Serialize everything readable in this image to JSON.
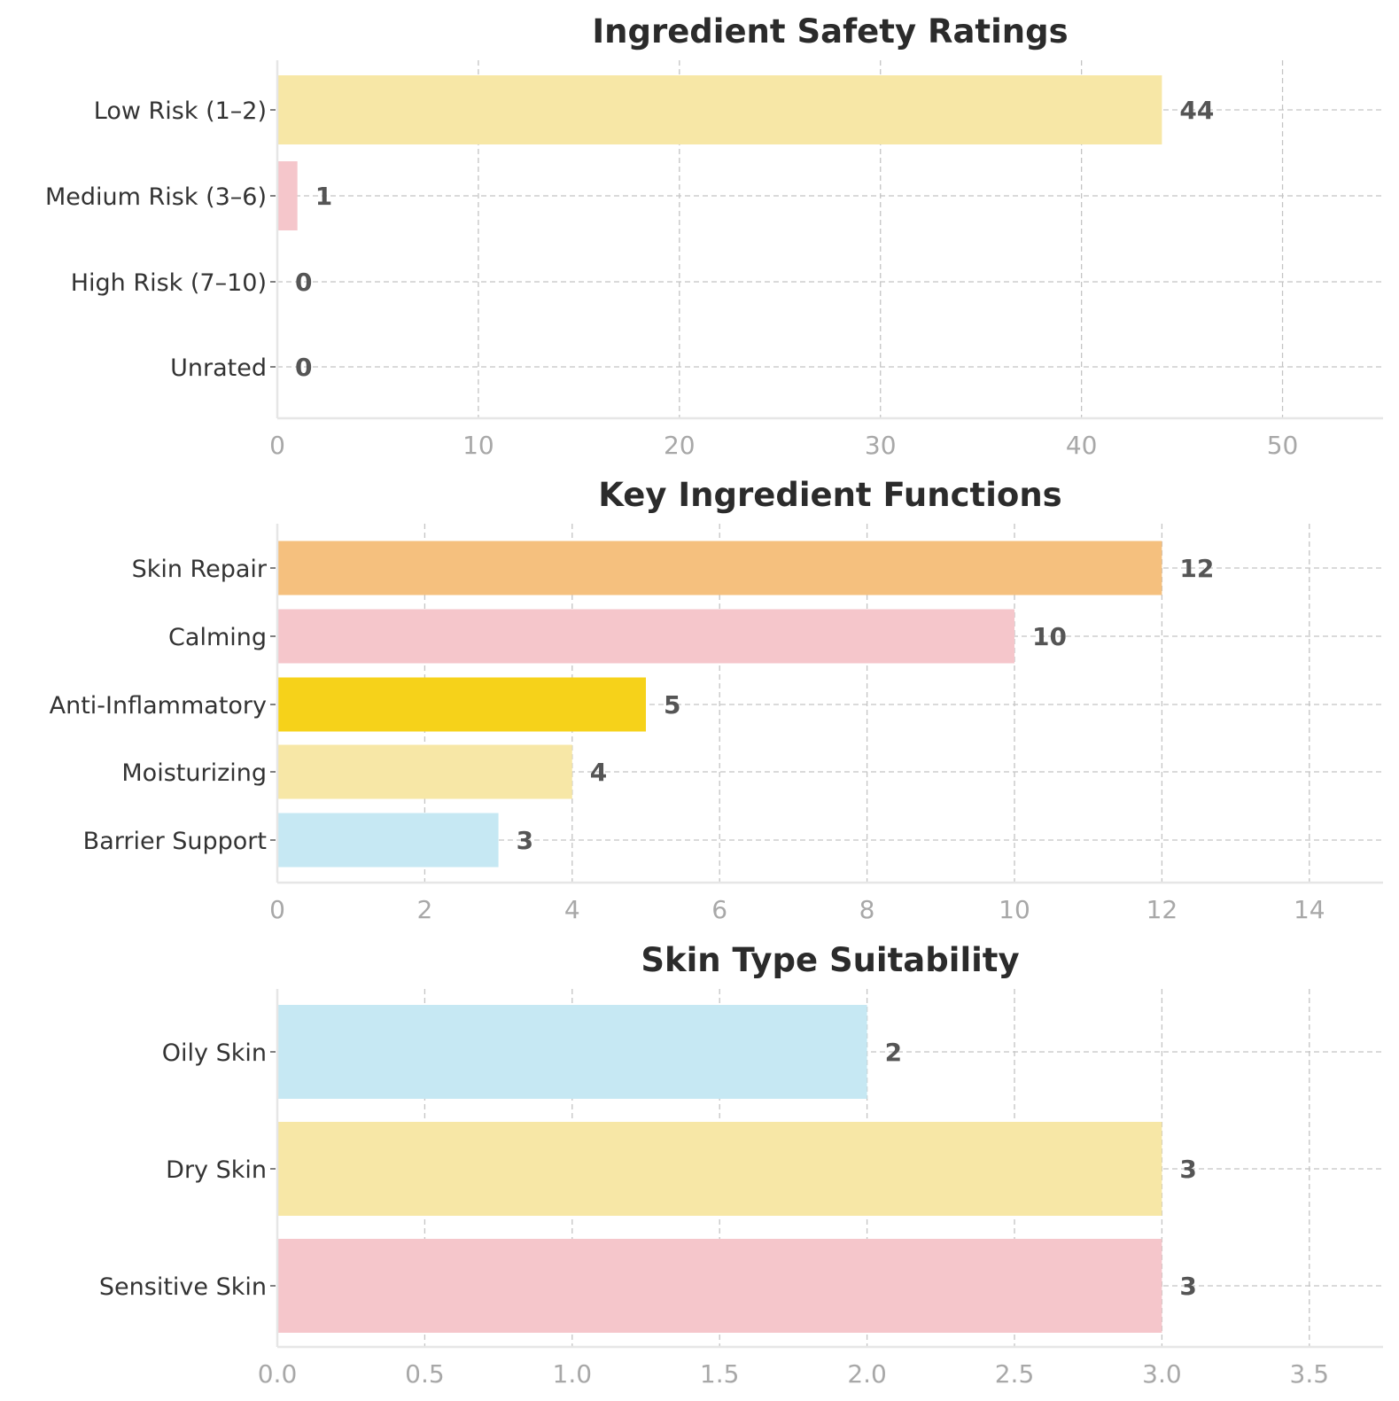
{
  "chart_data": [
    {
      "type": "bar",
      "orientation": "horizontal",
      "title": "Ingredient Safety Ratings",
      "categories": [
        "Low Risk (1–2)",
        "Medium Risk (3–6)",
        "High Risk (7–10)",
        "Unrated"
      ],
      "values": [
        44,
        1,
        0,
        0
      ],
      "value_labels": [
        "44",
        "1",
        "0",
        "0"
      ],
      "colors": [
        "#f7e7a6",
        "#f5c6cb",
        "#f6d21a",
        "#c6e8f3"
      ],
      "xlim": [
        0,
        55
      ],
      "xticks": [
        0,
        10,
        20,
        30,
        40,
        50
      ],
      "xtick_labels": [
        "0",
        "10",
        "20",
        "30",
        "40",
        "50"
      ],
      "grid": true
    },
    {
      "type": "bar",
      "orientation": "horizontal",
      "title": "Key Ingredient Functions",
      "categories": [
        "Skin Repair",
        "Calming",
        "Anti-Inflammatory",
        "Moisturizing",
        "Barrier Support"
      ],
      "values": [
        12,
        10,
        5,
        4,
        3
      ],
      "value_labels": [
        "12",
        "10",
        "5",
        "4",
        "3"
      ],
      "colors": [
        "#f5c07e",
        "#f5c6cb",
        "#f6d21a",
        "#f7e7a6",
        "#c6e8f3"
      ],
      "xlim": [
        0,
        15
      ],
      "xticks": [
        0,
        2,
        4,
        6,
        8,
        10,
        12,
        14
      ],
      "xtick_labels": [
        "0",
        "2",
        "4",
        "6",
        "8",
        "10",
        "12",
        "14"
      ],
      "grid": true
    },
    {
      "type": "bar",
      "orientation": "horizontal",
      "title": "Skin Type Suitability",
      "categories": [
        "Oily Skin",
        "Dry Skin",
        "Sensitive Skin"
      ],
      "values": [
        2,
        3,
        3
      ],
      "value_labels": [
        "2",
        "3",
        "3"
      ],
      "colors": [
        "#c6e8f3",
        "#f7e7a6",
        "#f5c6cb"
      ],
      "xlim": [
        0,
        3.75
      ],
      "xticks": [
        0,
        0.5,
        1,
        1.5,
        2,
        2.5,
        3,
        3.5
      ],
      "xtick_labels": [
        "0.0",
        "0.5",
        "1.0",
        "1.5",
        "2.0",
        "2.5",
        "3.0",
        "3.5"
      ],
      "grid": true
    }
  ]
}
